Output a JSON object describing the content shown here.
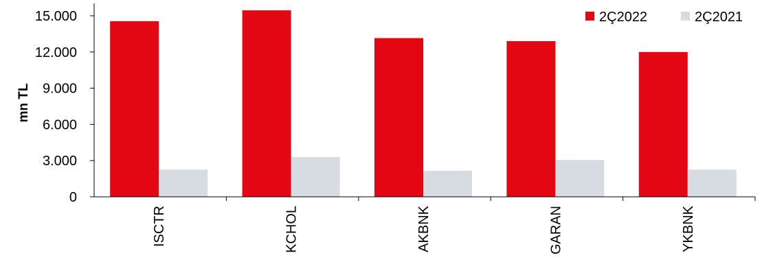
{
  "chart_data": {
    "type": "bar",
    "title": "",
    "xlabel": "",
    "ylabel": "mn TL",
    "categories": [
      "ISCTR",
      "KCHOL",
      "AKBNK",
      "GARAN",
      "YKBNK"
    ],
    "series": [
      {
        "name": "2Ç2022",
        "color": "#E30613",
        "values": [
          14550,
          15450,
          13150,
          12900,
          12000
        ]
      },
      {
        "name": "2Ç2021",
        "color": "#D6DCE1",
        "values": [
          2250,
          3300,
          2150,
          3050,
          2250
        ]
      }
    ],
    "ylim": [
      0,
      15000
    ],
    "yticks": [
      0,
      3000,
      6000,
      9000,
      12000,
      15000
    ],
    "ytick_labels": [
      "0",
      "3.000",
      "6.000",
      "9.000",
      "12.000",
      "15.000"
    ],
    "grid": false,
    "legend_position": "top-right"
  }
}
